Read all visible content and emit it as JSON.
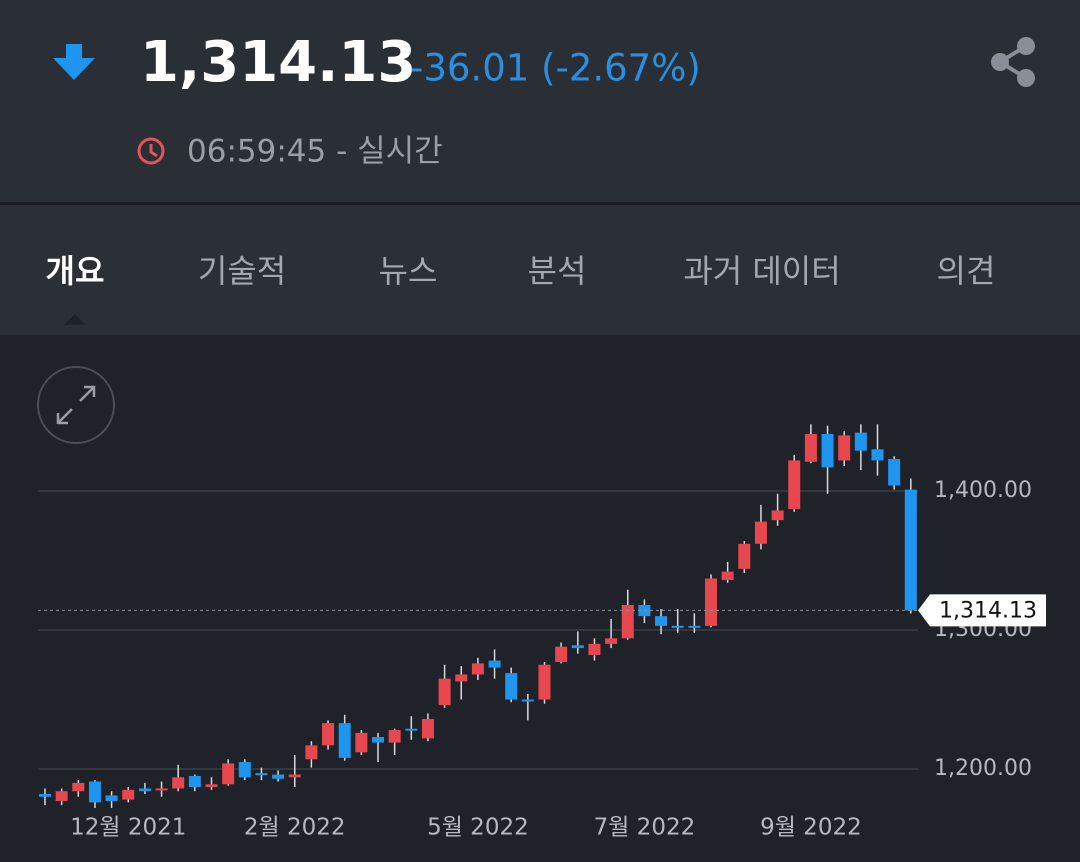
{
  "header": {
    "price": "1,314.13",
    "change": "-36.01 (-2.67%)",
    "time": "06:59:45 - 실시간"
  },
  "tabs": [
    "개요",
    "기술적",
    "뉴스",
    "분석",
    "과거 데이터",
    "의견"
  ],
  "chart_data": {
    "type": "candlestick",
    "categories": [
      null,
      null,
      null,
      null,
      null,
      "12월 2021",
      null,
      null,
      null,
      null,
      null,
      null,
      null,
      null,
      null,
      "2월 2022",
      null,
      null,
      null,
      null,
      null,
      null,
      null,
      null,
      null,
      null,
      "5월 2022",
      null,
      null,
      null,
      null,
      null,
      null,
      null,
      null,
      null,
      "7월 2022",
      null,
      null,
      null,
      null,
      null,
      null,
      null,
      null,
      null,
      "9월 2022",
      null,
      null,
      null,
      null,
      null,
      null
    ],
    "open": [
      1182,
      1177,
      1184,
      1191,
      1181,
      1178,
      1186,
      1185,
      1186,
      1195,
      1187,
      1189,
      1205,
      1197,
      1196,
      1194,
      1207,
      1217,
      1233,
      1212,
      1223,
      1219,
      1229,
      1222,
      1246,
      1263,
      1268,
      1278,
      1269,
      1250,
      1250,
      1277,
      1289,
      1282,
      1290,
      1294,
      1318,
      1310,
      1303,
      1303,
      1303,
      1336,
      1344,
      1362,
      1379,
      1387,
      1421,
      1441,
      1422,
      1442,
      1430,
      1423,
      1401
    ],
    "high": [
      1186,
      1186,
      1192,
      1192,
      1184,
      1187,
      1190,
      1191,
      1203,
      1196,
      1194,
      1207,
      1207,
      1201,
      1199,
      1210,
      1220,
      1235,
      1239,
      1228,
      1226,
      1229,
      1238,
      1240,
      1275,
      1274,
      1280,
      1286,
      1273,
      1254,
      1277,
      1291,
      1299,
      1294,
      1308,
      1329,
      1322,
      1315,
      1315,
      1312,
      1340,
      1349,
      1364,
      1390,
      1398,
      1426,
      1448,
      1447,
      1443,
      1448,
      1448,
      1425,
      1409
    ],
    "low": [
      1174,
      1174,
      1180,
      1172,
      1172,
      1176,
      1182,
      1180,
      1184,
      1184,
      1185,
      1188,
      1192,
      1192,
      1191,
      1187,
      1201,
      1214,
      1206,
      1210,
      1205,
      1210,
      1221,
      1220,
      1244,
      1250,
      1264,
      1265,
      1248,
      1235,
      1247,
      1276,
      1283,
      1278,
      1287,
      1293,
      1305,
      1297,
      1298,
      1298,
      1302,
      1334,
      1341,
      1358,
      1375,
      1385,
      1420,
      1398,
      1418,
      1415,
      1411,
      1401,
      1312
    ],
    "close": [
      1180,
      1184,
      1190,
      1176,
      1177,
      1185,
      1184,
      1186,
      1194,
      1187,
      1189,
      1204,
      1194,
      1196,
      1193,
      1196,
      1217,
      1233,
      1208,
      1226,
      1219,
      1228,
      1228,
      1236,
      1265,
      1268,
      1276,
      1273,
      1250,
      1249,
      1275,
      1288,
      1287,
      1290,
      1294,
      1318,
      1310,
      1303,
      1302,
      1302,
      1337,
      1342,
      1362,
      1378,
      1386,
      1422,
      1441,
      1417,
      1440,
      1429,
      1422,
      1404,
      1314.13
    ],
    "up_color": "#e8474f",
    "down_color": "#1e96f0",
    "ylim": [
      1150,
      1500
    ],
    "yticks": [
      {
        "value": 1200,
        "label": "1,200.00"
      },
      {
        "value": 1300,
        "label": "1,300.00"
      },
      {
        "value": 1400,
        "label": "1,400.00"
      }
    ],
    "grid": true,
    "last_price": {
      "value": 1314.13,
      "label": "1,314.13"
    }
  }
}
